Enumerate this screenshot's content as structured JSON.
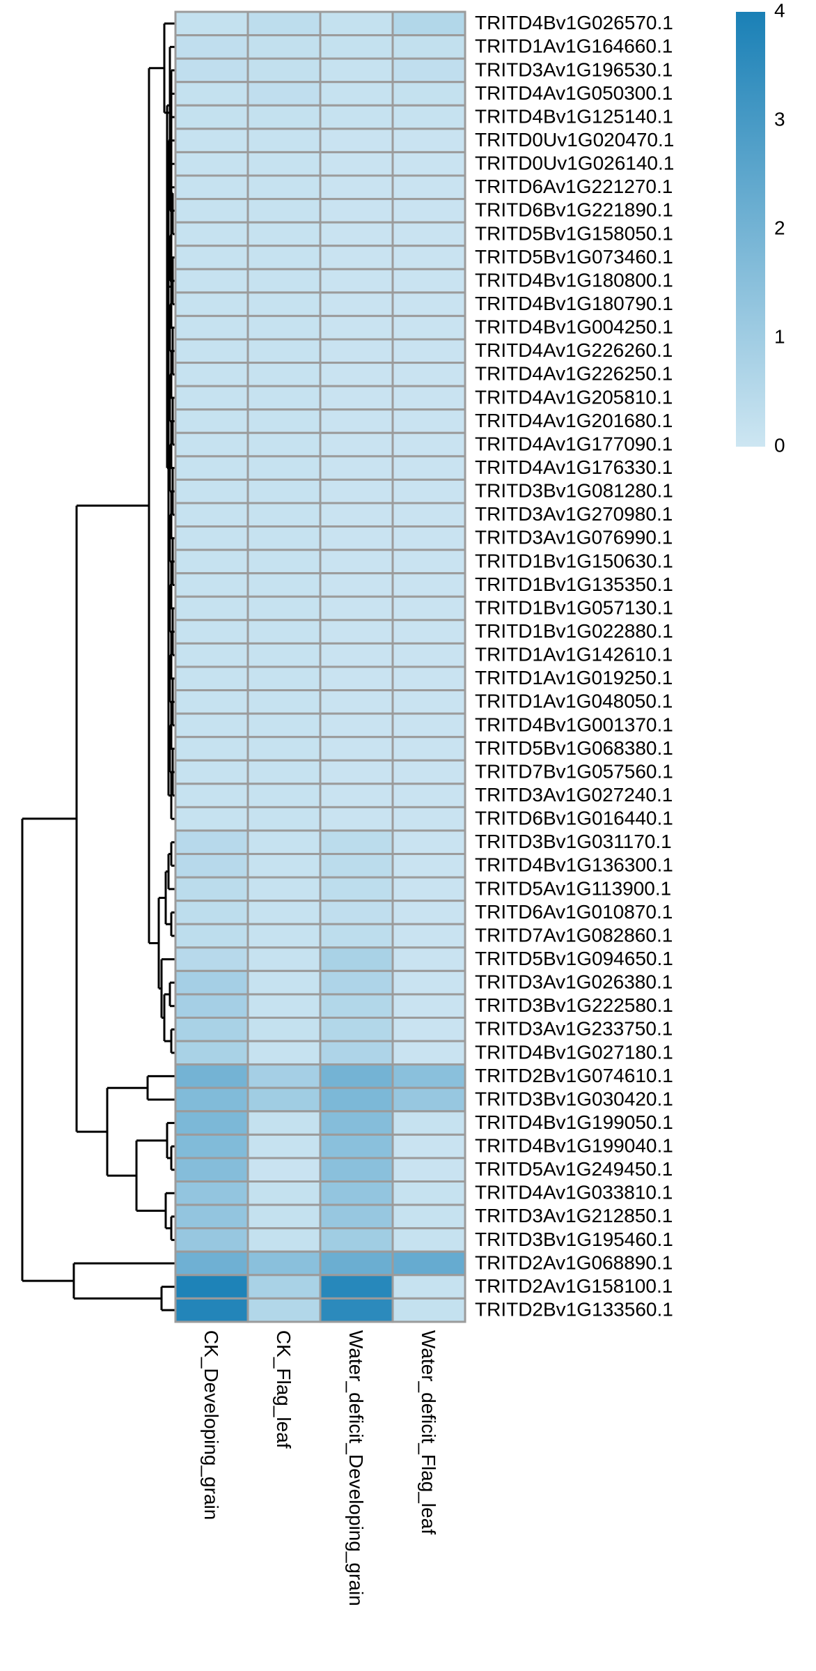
{
  "chart_data": {
    "type": "heatmap",
    "title": "",
    "xlabel": "",
    "ylabel": "",
    "columns": [
      "CK_Developing_grain",
      "CK_Flag_leaf",
      "Water_deficit_Developing_grain",
      "Water_deficit_Flag_leaf"
    ],
    "rows": [
      "TRITD4Bv1G026570.1",
      "TRITD1Av1G164660.1",
      "TRITD3Av1G196530.1",
      "TRITD4Av1G050300.1",
      "TRITD4Bv1G125140.1",
      "TRITD0Uv1G020470.1",
      "TRITD0Uv1G026140.1",
      "TRITD6Av1G221270.1",
      "TRITD6Bv1G221890.1",
      "TRITD5Bv1G158050.1",
      "TRITD5Bv1G073460.1",
      "TRITD4Bv1G180800.1",
      "TRITD4Bv1G180790.1",
      "TRITD4Bv1G004250.1",
      "TRITD4Av1G226260.1",
      "TRITD4Av1G226250.1",
      "TRITD4Av1G205810.1",
      "TRITD4Av1G201680.1",
      "TRITD4Av1G177090.1",
      "TRITD4Av1G176330.1",
      "TRITD3Bv1G081280.1",
      "TRITD3Av1G270980.1",
      "TRITD3Av1G076990.1",
      "TRITD1Bv1G150630.1",
      "TRITD1Bv1G135350.1",
      "TRITD1Bv1G057130.1",
      "TRITD1Bv1G022880.1",
      "TRITD1Av1G142610.1",
      "TRITD1Av1G019250.1",
      "TRITD1Av1G048050.1",
      "TRITD4Bv1G001370.1",
      "TRITD5Bv1G068380.1",
      "TRITD7Bv1G057560.1",
      "TRITD3Av1G027240.1",
      "TRITD6Bv1G016440.1",
      "TRITD3Bv1G031170.1",
      "TRITD4Bv1G136300.1",
      "TRITD5Av1G113900.1",
      "TRITD6Av1G010870.1",
      "TRITD7Av1G082860.1",
      "TRITD5Bv1G094650.1",
      "TRITD3Av1G026380.1",
      "TRITD3Bv1G222580.1",
      "TRITD3Av1G233750.1",
      "TRITD4Bv1G027180.1",
      "TRITD2Bv1G074610.1",
      "TRITD3Bv1G030420.1",
      "TRITD4Bv1G199050.1",
      "TRITD4Bv1G199040.1",
      "TRITD5Av1G249450.1",
      "TRITD4Av1G033810.1",
      "TRITD3Av1G212850.1",
      "TRITD3Bv1G195460.1",
      "TRITD2Av1G068890.1",
      "TRITD2Av1G158100.1",
      "TRITD2Bv1G133560.1"
    ],
    "values": [
      [
        0.2,
        0.35,
        0.2,
        0.6
      ],
      [
        0.3,
        0.25,
        0.2,
        0.25
      ],
      [
        0.3,
        0.25,
        0.15,
        0.3
      ],
      [
        0.2,
        0.3,
        0.15,
        0.2
      ],
      [
        0.2,
        0.2,
        0.15,
        0.15
      ],
      [
        0.15,
        0.15,
        0.1,
        0.1
      ],
      [
        0.15,
        0.15,
        0.1,
        0.1
      ],
      [
        0.15,
        0.15,
        0.1,
        0.1
      ],
      [
        0.15,
        0.15,
        0.1,
        0.1
      ],
      [
        0.15,
        0.15,
        0.1,
        0.1
      ],
      [
        0.15,
        0.15,
        0.1,
        0.1
      ],
      [
        0.15,
        0.15,
        0.1,
        0.1
      ],
      [
        0.15,
        0.15,
        0.1,
        0.1
      ],
      [
        0.15,
        0.15,
        0.1,
        0.1
      ],
      [
        0.15,
        0.15,
        0.1,
        0.1
      ],
      [
        0.15,
        0.15,
        0.1,
        0.1
      ],
      [
        0.15,
        0.15,
        0.1,
        0.1
      ],
      [
        0.15,
        0.15,
        0.1,
        0.1
      ],
      [
        0.15,
        0.15,
        0.1,
        0.1
      ],
      [
        0.15,
        0.15,
        0.1,
        0.1
      ],
      [
        0.15,
        0.15,
        0.1,
        0.1
      ],
      [
        0.15,
        0.15,
        0.1,
        0.1
      ],
      [
        0.15,
        0.15,
        0.1,
        0.1
      ],
      [
        0.15,
        0.15,
        0.1,
        0.1
      ],
      [
        0.15,
        0.15,
        0.1,
        0.1
      ],
      [
        0.15,
        0.15,
        0.1,
        0.1
      ],
      [
        0.15,
        0.15,
        0.1,
        0.1
      ],
      [
        0.15,
        0.15,
        0.1,
        0.1
      ],
      [
        0.15,
        0.15,
        0.1,
        0.1
      ],
      [
        0.15,
        0.15,
        0.1,
        0.1
      ],
      [
        0.15,
        0.15,
        0.1,
        0.1
      ],
      [
        0.15,
        0.15,
        0.1,
        0.1
      ],
      [
        0.15,
        0.15,
        0.1,
        0.1
      ],
      [
        0.15,
        0.15,
        0.1,
        0.1
      ],
      [
        0.15,
        0.15,
        0.1,
        0.1
      ],
      [
        0.5,
        0.15,
        0.4,
        0.1
      ],
      [
        0.5,
        0.15,
        0.4,
        0.1
      ],
      [
        0.4,
        0.15,
        0.35,
        0.1
      ],
      [
        0.35,
        0.15,
        0.3,
        0.1
      ],
      [
        0.35,
        0.15,
        0.35,
        0.1
      ],
      [
        0.5,
        0.15,
        0.8,
        0.1
      ],
      [
        0.9,
        0.15,
        0.7,
        0.1
      ],
      [
        0.9,
        0.15,
        0.6,
        0.1
      ],
      [
        0.8,
        0.2,
        0.6,
        0.1
      ],
      [
        0.8,
        0.15,
        0.7,
        0.1
      ],
      [
        2.0,
        0.9,
        2.0,
        1.5
      ],
      [
        1.7,
        1.0,
        1.8,
        1.2
      ],
      [
        1.8,
        0.2,
        1.6,
        0.15
      ],
      [
        1.7,
        0.15,
        1.5,
        0.1
      ],
      [
        1.6,
        0.1,
        1.5,
        0.1
      ],
      [
        1.3,
        0.2,
        1.3,
        0.15
      ],
      [
        1.3,
        0.2,
        1.2,
        0.15
      ],
      [
        1.2,
        0.2,
        1.0,
        0.15
      ],
      [
        2.1,
        1.5,
        2.2,
        2.3
      ],
      [
        3.9,
        0.8,
        3.7,
        0.15
      ],
      [
        3.8,
        0.6,
        3.6,
        0.2
      ]
    ],
    "color_scale": {
      "min": 0,
      "max": 4,
      "low_color": "#cde6f2",
      "high_color": "#1a80b6",
      "ticks": [
        0,
        1,
        2,
        3,
        4
      ]
    },
    "row_dendrogram": "left",
    "legend": "top-right"
  }
}
